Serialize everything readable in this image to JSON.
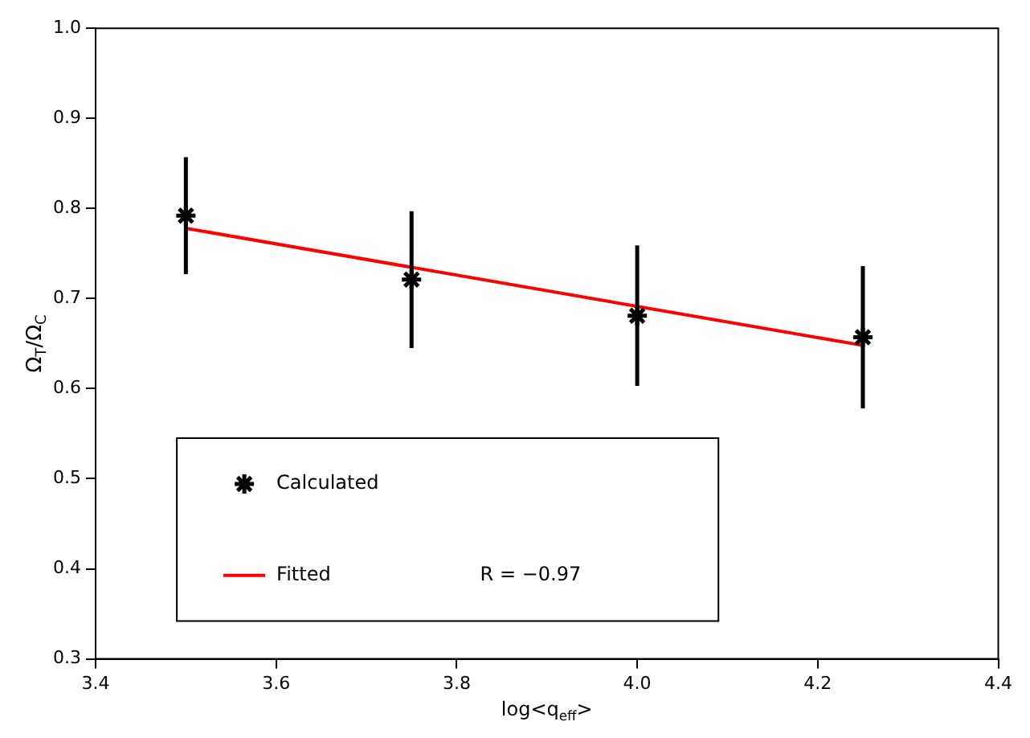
{
  "chart_data": {
    "type": "scatter",
    "xlabel": "log<q$_{eff}$>",
    "ylabel": "Ω$_{T}$/Ω$_{C}$",
    "xlim": [
      3.4,
      4.4
    ],
    "xticks": [
      3.4,
      3.6,
      3.8,
      {
        "value": 4,
        "label": "4.0"
      },
      4.2,
      4.4
    ],
    "ylim": [
      0.3,
      1.0
    ],
    "yticks": [
      0.3,
      0.4,
      0.5,
      0.6,
      0.7,
      0.8,
      0.9,
      {
        "value": 1,
        "label": "1.0"
      }
    ],
    "grid": false,
    "legend": "bottom left",
    "series": [
      {
        "name": "Calculated",
        "type": "scatter",
        "color": "#000000",
        "marker": "cross",
        "x": [
          3.5,
          3.75,
          4.0,
          4.25
        ],
        "values": [
          0.792,
          0.721,
          0.681,
          0.657
        ],
        "errors": [
          0.065,
          0.076,
          0.078,
          0.079
        ]
      },
      {
        "name": "Fitted",
        "type": "line",
        "color": "#ff0000",
        "marker": "none",
        "line_style": "solid",
        "x": [
          3.5,
          4.25
        ],
        "values": [
          0.778,
          0.648
        ]
      }
    ],
    "annotations": [
      "R = −0.97"
    ]
  }
}
